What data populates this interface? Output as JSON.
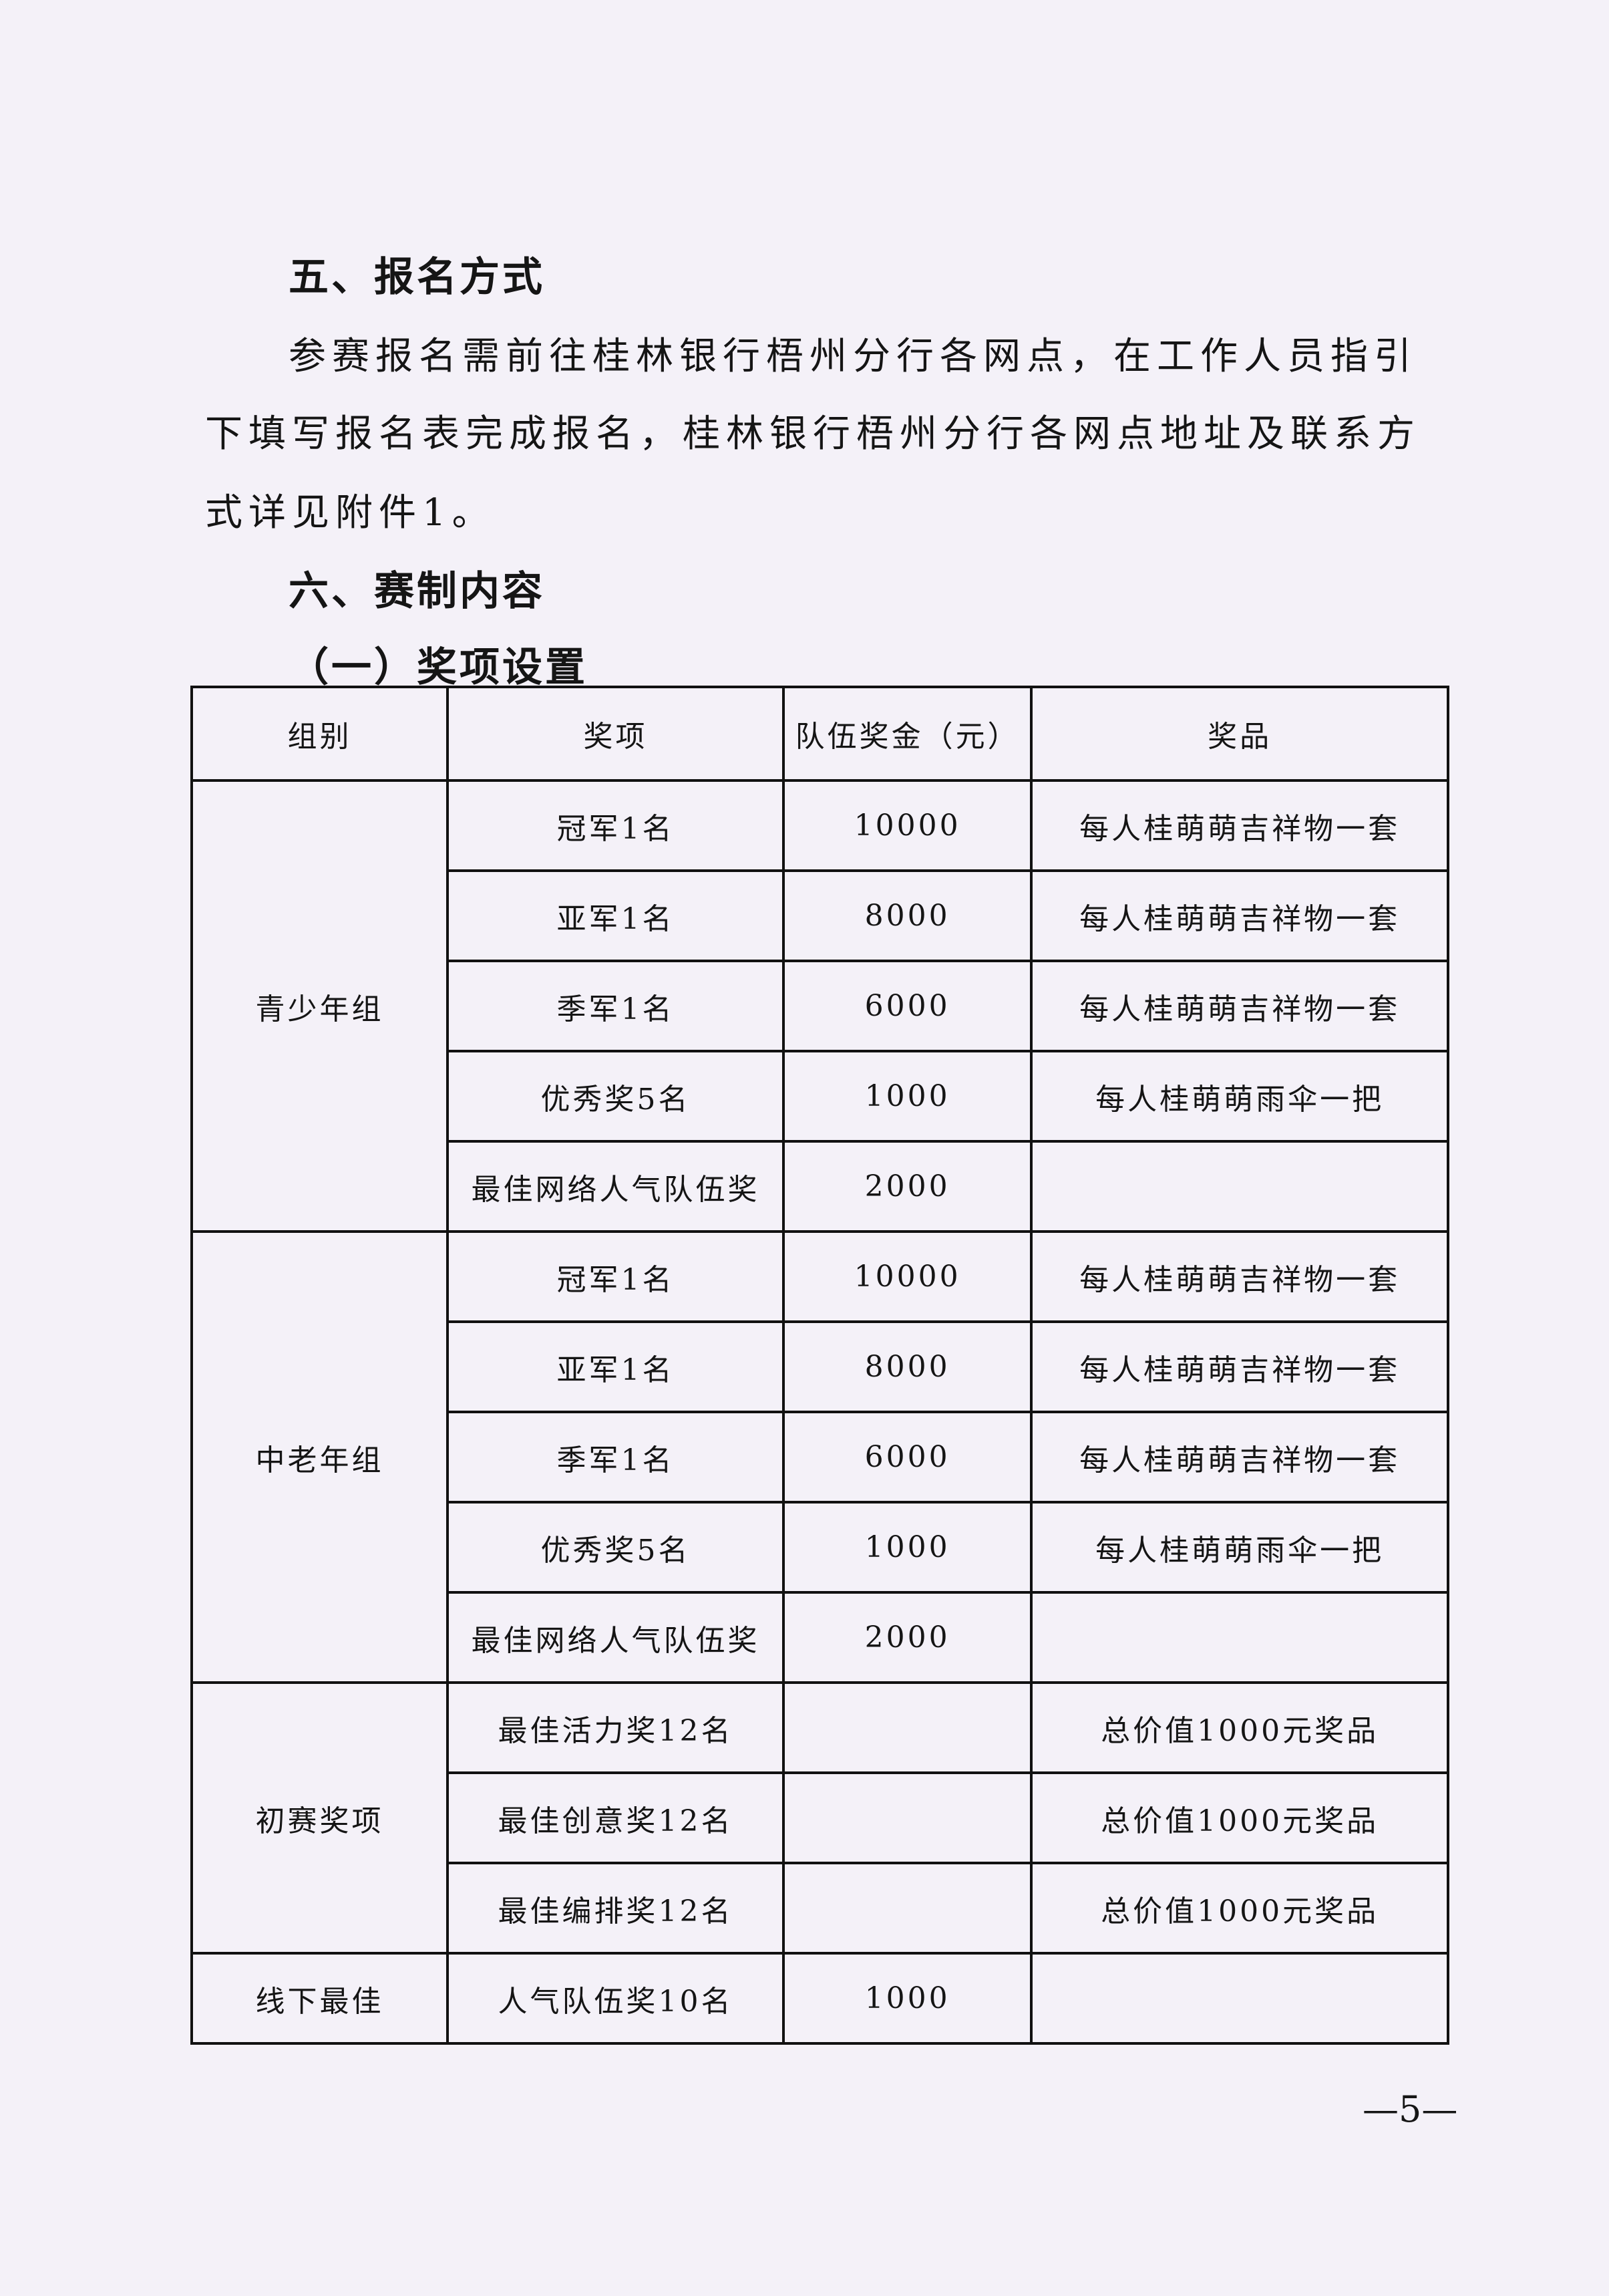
{
  "section5": {
    "heading": "五、报名方式",
    "lines": [
      "参赛报名需前往桂林银行梧州分行各网点，在工作人员指引",
      "下填写报名表完成报名，桂林银行梧州分行各网点地址及联系方",
      "式详见附件1。"
    ]
  },
  "section6": {
    "heading": "六、赛制内容",
    "subheading": "（一）奖项设置"
  },
  "table": {
    "headers": [
      "组别",
      "奖项",
      "队伍奖金（元）",
      "奖品"
    ],
    "groups": [
      {
        "name": "青少年组",
        "rows": [
          {
            "award": "冠军1名",
            "bonus": "10000",
            "prize": "每人桂萌萌吉祥物一套"
          },
          {
            "award": "亚军1名",
            "bonus": "8000",
            "prize": "每人桂萌萌吉祥物一套"
          },
          {
            "award": "季军1名",
            "bonus": "6000",
            "prize": "每人桂萌萌吉祥物一套"
          },
          {
            "award": "优秀奖5名",
            "bonus": "1000",
            "prize": "每人桂萌萌雨伞一把"
          },
          {
            "award": "最佳网络人气队伍奖",
            "bonus": "2000",
            "prize": ""
          }
        ]
      },
      {
        "name": "中老年组",
        "rows": [
          {
            "award": "冠军1名",
            "bonus": "10000",
            "prize": "每人桂萌萌吉祥物一套"
          },
          {
            "award": "亚军1名",
            "bonus": "8000",
            "prize": "每人桂萌萌吉祥物一套"
          },
          {
            "award": "季军1名",
            "bonus": "6000",
            "prize": "每人桂萌萌吉祥物一套"
          },
          {
            "award": "优秀奖5名",
            "bonus": "1000",
            "prize": "每人桂萌萌雨伞一把"
          },
          {
            "award": "最佳网络人气队伍奖",
            "bonus": "2000",
            "prize": ""
          }
        ]
      },
      {
        "name": "初赛奖项",
        "rows": [
          {
            "award": "最佳活力奖12名",
            "bonus": "",
            "prize": "总价值1000元奖品"
          },
          {
            "award": "最佳创意奖12名",
            "bonus": "",
            "prize": "总价值1000元奖品"
          },
          {
            "award": "最佳编排奖12名",
            "bonus": "",
            "prize": "总价值1000元奖品"
          }
        ]
      },
      {
        "name": "线下最佳",
        "rows": [
          {
            "award": "人气队伍奖10名",
            "bonus": "1000",
            "prize": ""
          }
        ]
      }
    ]
  },
  "page_number": "—5—"
}
